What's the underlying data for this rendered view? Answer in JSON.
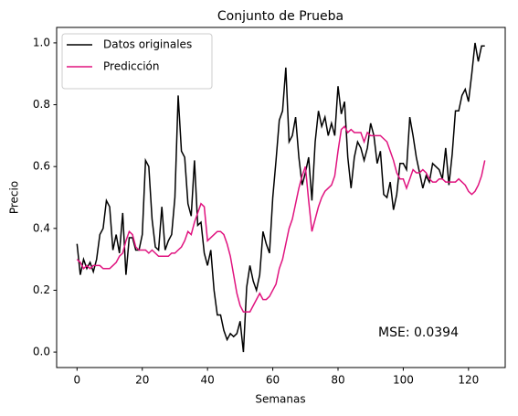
{
  "chart_data": {
    "type": "line",
    "title": "Conjunto de Prueba",
    "xlabel": "Semanas",
    "ylabel": "Precio",
    "annotation": "MSE: 0.0394",
    "legend": "upper left",
    "x": [
      0,
      1,
      2,
      3,
      4,
      5,
      6,
      7,
      8,
      9,
      10,
      11,
      12,
      13,
      14,
      15,
      16,
      17,
      18,
      19,
      20,
      21,
      22,
      23,
      24,
      25,
      26,
      27,
      28,
      29,
      30,
      31,
      32,
      33,
      34,
      35,
      36,
      37,
      38,
      39,
      40,
      41,
      42,
      43,
      44,
      45,
      46,
      47,
      48,
      49,
      50,
      51,
      52,
      53,
      54,
      55,
      56,
      57,
      58,
      59,
      60,
      61,
      62,
      63,
      64,
      65,
      66,
      67,
      68,
      69,
      70,
      71,
      72,
      73,
      74,
      75,
      76,
      77,
      78,
      79,
      80,
      81,
      82,
      83,
      84,
      85,
      86,
      87,
      88,
      89,
      90,
      91,
      92,
      93,
      94,
      95,
      96,
      97,
      98,
      99,
      100,
      101,
      102,
      103,
      104,
      105,
      106,
      107,
      108,
      109,
      110,
      111,
      112,
      113,
      114,
      115,
      116,
      117,
      118,
      119,
      120,
      121,
      122,
      123,
      124,
      125
    ],
    "series": [
      {
        "name": "Datos originales",
        "color": "#000000",
        "values": [
          0.35,
          0.25,
          0.3,
          0.27,
          0.29,
          0.26,
          0.3,
          0.38,
          0.4,
          0.49,
          0.47,
          0.33,
          0.38,
          0.32,
          0.45,
          0.25,
          0.37,
          0.37,
          0.33,
          0.33,
          0.38,
          0.62,
          0.6,
          0.43,
          0.34,
          0.33,
          0.47,
          0.33,
          0.36,
          0.38,
          0.5,
          0.83,
          0.65,
          0.63,
          0.48,
          0.44,
          0.62,
          0.41,
          0.42,
          0.32,
          0.28,
          0.33,
          0.2,
          0.12,
          0.12,
          0.07,
          0.04,
          0.06,
          0.05,
          0.06,
          0.1,
          0.0,
          0.21,
          0.28,
          0.23,
          0.2,
          0.25,
          0.39,
          0.35,
          0.32,
          0.5,
          0.62,
          0.75,
          0.78,
          0.92,
          0.68,
          0.7,
          0.76,
          0.63,
          0.54,
          0.58,
          0.63,
          0.49,
          0.68,
          0.78,
          0.73,
          0.76,
          0.7,
          0.74,
          0.7,
          0.86,
          0.77,
          0.81,
          0.63,
          0.53,
          0.63,
          0.68,
          0.66,
          0.62,
          0.66,
          0.74,
          0.7,
          0.61,
          0.65,
          0.51,
          0.5,
          0.55,
          0.46,
          0.51,
          0.61,
          0.61,
          0.59,
          0.76,
          0.7,
          0.63,
          0.58,
          0.53,
          0.57,
          0.55,
          0.61,
          0.6,
          0.59,
          0.56,
          0.66,
          0.54,
          0.64,
          0.78,
          0.78,
          0.83,
          0.85,
          0.81,
          0.9,
          1.0,
          0.94,
          0.99,
          0.99
        ]
      },
      {
        "name": "Predicción",
        "color": "#e0137f",
        "values": [
          0.3,
          0.29,
          0.27,
          0.28,
          0.27,
          0.28,
          0.28,
          0.28,
          0.27,
          0.27,
          0.27,
          0.28,
          0.29,
          0.31,
          0.32,
          0.36,
          0.39,
          0.38,
          0.34,
          0.33,
          0.33,
          0.33,
          0.32,
          0.33,
          0.32,
          0.31,
          0.31,
          0.31,
          0.31,
          0.32,
          0.32,
          0.33,
          0.34,
          0.36,
          0.39,
          0.38,
          0.42,
          0.45,
          0.48,
          0.47,
          0.36,
          0.37,
          0.38,
          0.39,
          0.39,
          0.38,
          0.35,
          0.31,
          0.25,
          0.19,
          0.15,
          0.13,
          0.13,
          0.13,
          0.15,
          0.17,
          0.19,
          0.17,
          0.17,
          0.18,
          0.2,
          0.22,
          0.27,
          0.3,
          0.35,
          0.4,
          0.43,
          0.48,
          0.53,
          0.57,
          0.6,
          0.49,
          0.39,
          0.43,
          0.47,
          0.5,
          0.52,
          0.53,
          0.54,
          0.57,
          0.65,
          0.72,
          0.73,
          0.71,
          0.72,
          0.71,
          0.71,
          0.71,
          0.68,
          0.71,
          0.7,
          0.7,
          0.7,
          0.7,
          0.69,
          0.68,
          0.65,
          0.62,
          0.58,
          0.56,
          0.56,
          0.53,
          0.56,
          0.59,
          0.58,
          0.58,
          0.59,
          0.58,
          0.56,
          0.55,
          0.55,
          0.56,
          0.56,
          0.55,
          0.55,
          0.55,
          0.55,
          0.56,
          0.55,
          0.54,
          0.52,
          0.51,
          0.52,
          0.54,
          0.57,
          0.62
        ]
      }
    ],
    "xlim": [
      -6.25,
      131.25
    ],
    "xticks": [
      0,
      20,
      40,
      60,
      80,
      100,
      120
    ],
    "ylim": [
      -0.05,
      1.05
    ],
    "yticks": [
      {
        "value": 0,
        "label": "0.0"
      },
      {
        "value": 0.2,
        "label": "0.2"
      },
      {
        "value": 0.4,
        "label": "0.4"
      },
      {
        "value": 0.6,
        "label": "0.6"
      },
      {
        "value": 0.8,
        "label": "0.8"
      },
      {
        "value": 1,
        "label": "1.0"
      }
    ]
  }
}
